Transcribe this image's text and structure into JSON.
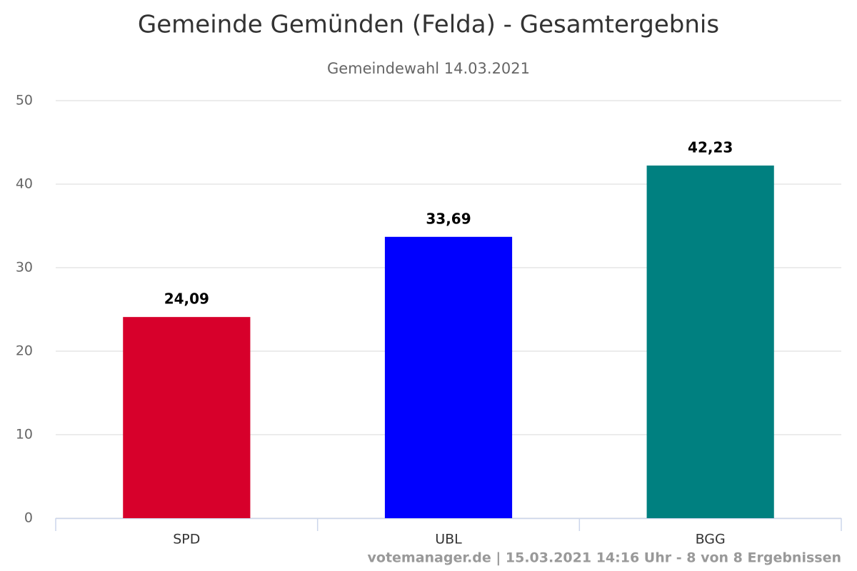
{
  "chart_data": {
    "type": "bar",
    "title": "Gemeinde Gemünden (Felda) - Gesamtergebnis",
    "subtitle": "Gemeindewahl 14.03.2021",
    "categories": [
      "SPD",
      "UBL",
      "BGG"
    ],
    "values": [
      24.09,
      33.69,
      42.23
    ],
    "value_labels": [
      "24,09",
      "33,69",
      "42,23"
    ],
    "colors": [
      "#d7002b",
      "#0000ff",
      "#008080"
    ],
    "ylim": [
      0,
      50
    ],
    "yticks": [
      0,
      10,
      20,
      30,
      40,
      50
    ],
    "grid": true,
    "credits": "votemanager.de | 15.03.2021 14:16 Uhr - 8 von 8 Ergebnissen"
  }
}
